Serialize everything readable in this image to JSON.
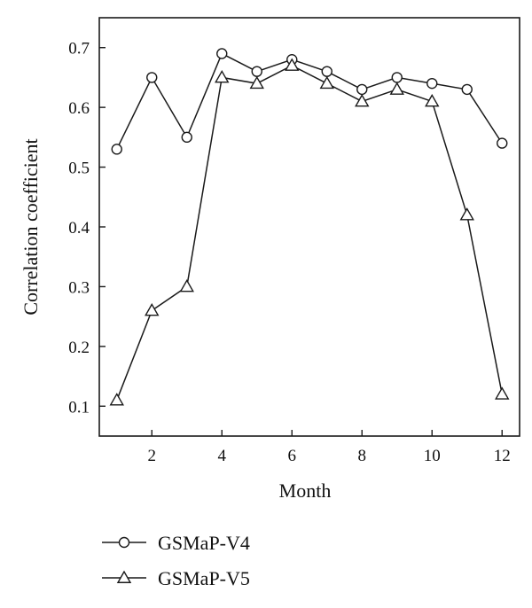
{
  "chart_data": {
    "type": "line",
    "xlabel": "Month",
    "ylabel": "Correlation coefficient",
    "xlim": [
      0.5,
      12.5
    ],
    "ylim": [
      0.05,
      0.75
    ],
    "xticks": [
      "2",
      "4",
      "6",
      "8",
      "10",
      "12"
    ],
    "yticks": [
      "0.1",
      "0.2",
      "0.3",
      "0.4",
      "0.5",
      "0.6",
      "0.7"
    ],
    "grid": false,
    "legend_position": "bottom-left",
    "x": [
      1,
      2,
      3,
      4,
      5,
      6,
      7,
      8,
      9,
      10,
      11,
      12
    ],
    "series": [
      {
        "name": "GSMaP-V4",
        "marker": "circle",
        "values": [
          0.53,
          0.65,
          0.55,
          0.69,
          0.66,
          0.68,
          0.66,
          0.63,
          0.65,
          0.64,
          0.63,
          0.54
        ]
      },
      {
        "name": "GSMaP-V5",
        "marker": "triangle",
        "values": [
          0.11,
          0.26,
          0.3,
          0.65,
          0.64,
          0.67,
          0.64,
          0.61,
          0.63,
          0.61,
          0.42,
          0.12
        ]
      }
    ]
  },
  "colors": {
    "line": "#1a1a1a",
    "marker_fill": "#ffffff",
    "background": "#ffffff"
  }
}
